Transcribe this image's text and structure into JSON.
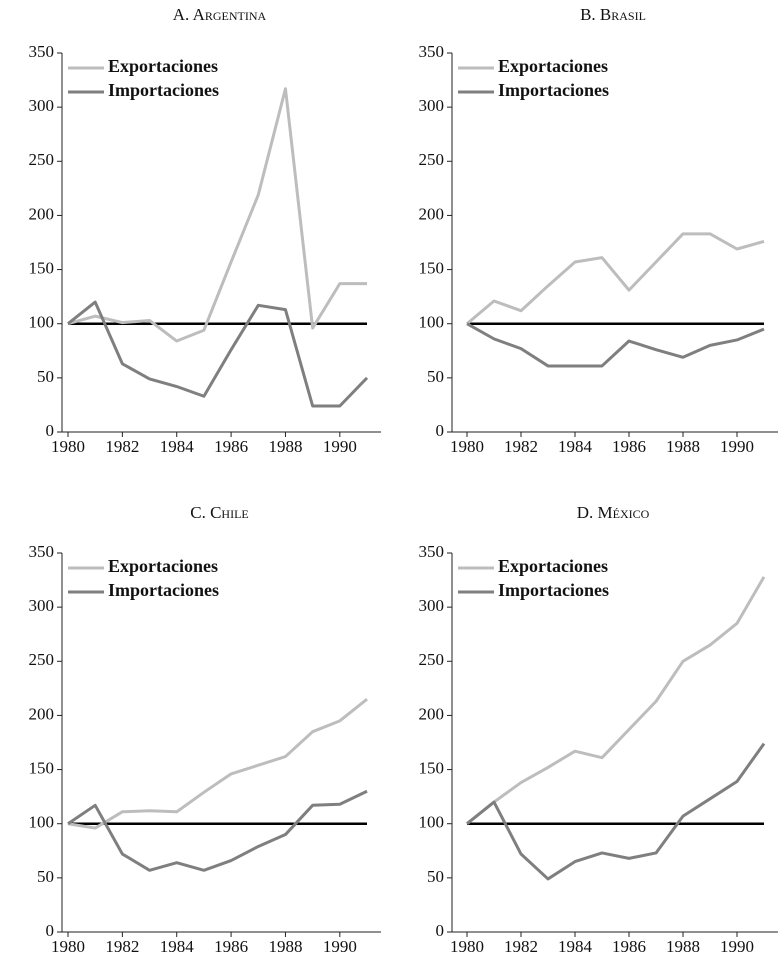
{
  "chart_data": [
    {
      "type": "line",
      "title": "A. Argentina",
      "x": [
        1980,
        1981,
        1982,
        1983,
        1984,
        1985,
        1986,
        1987,
        1988,
        1989,
        1990,
        1991
      ],
      "series": [
        {
          "name": "Exportaciones",
          "color": "#bdbdbd",
          "values": [
            100,
            107,
            101,
            103,
            84,
            94,
            157,
            219,
            317,
            96,
            137,
            137
          ]
        },
        {
          "name": "Importaciones",
          "color": "#7f7f7f",
          "values": [
            100,
            120,
            63,
            49,
            42,
            33,
            76,
            117,
            113,
            24,
            24,
            50
          ]
        }
      ],
      "reference_line": 100,
      "xlim": [
        1980,
        1991
      ],
      "xticks": [
        1980,
        1982,
        1984,
        1986,
        1988,
        1990
      ],
      "ylim": [
        0,
        350
      ],
      "yticks": [
        0,
        50,
        100,
        150,
        200,
        250,
        300,
        350
      ],
      "legend": "upper left"
    },
    {
      "type": "line",
      "title": "B. Brasil",
      "x": [
        1980,
        1981,
        1982,
        1983,
        1984,
        1985,
        1986,
        1987,
        1988,
        1989,
        1990,
        1991
      ],
      "series": [
        {
          "name": "Exportaciones",
          "color": "#bdbdbd",
          "values": [
            100,
            121,
            112,
            135,
            157,
            161,
            131,
            157,
            183,
            183,
            169,
            176
          ]
        },
        {
          "name": "Importaciones",
          "color": "#7f7f7f",
          "values": [
            100,
            86,
            77,
            61,
            61,
            61,
            84,
            76,
            69,
            80,
            85,
            95
          ]
        }
      ],
      "reference_line": 100,
      "xlim": [
        1980,
        1991
      ],
      "xticks": [
        1980,
        1982,
        1984,
        1986,
        1988,
        1990
      ],
      "ylim": [
        0,
        350
      ],
      "yticks": [
        0,
        50,
        100,
        150,
        200,
        250,
        300,
        350
      ],
      "legend": "upper left"
    },
    {
      "type": "line",
      "title": "C. Chile",
      "x": [
        1980,
        1981,
        1982,
        1983,
        1984,
        1985,
        1986,
        1987,
        1988,
        1989,
        1990,
        1991
      ],
      "series": [
        {
          "name": "Exportaciones",
          "color": "#bdbdbd",
          "values": [
            100,
            96,
            111,
            112,
            111,
            129,
            146,
            154,
            162,
            185,
            195,
            215
          ]
        },
        {
          "name": "Importaciones",
          "color": "#7f7f7f",
          "values": [
            100,
            117,
            72,
            57,
            64,
            57,
            66,
            79,
            90,
            117,
            118,
            130
          ]
        }
      ],
      "reference_line": 100,
      "xlim": [
        1980,
        1991
      ],
      "xticks": [
        1980,
        1982,
        1984,
        1986,
        1988,
        1990
      ],
      "ylim": [
        0,
        350
      ],
      "yticks": [
        0,
        50,
        100,
        150,
        200,
        250,
        300,
        350
      ],
      "legend": "upper left"
    },
    {
      "type": "line",
      "title": "D. México",
      "x": [
        1980,
        1981,
        1982,
        1983,
        1984,
        1985,
        1986,
        1987,
        1988,
        1989,
        1990,
        1991
      ],
      "series": [
        {
          "name": "Exportaciones",
          "color": "#bdbdbd",
          "values": [
            100,
            120,
            138,
            152,
            167,
            161,
            187,
            213,
            250,
            265,
            285,
            328
          ]
        },
        {
          "name": "Importaciones",
          "color": "#7f7f7f",
          "values": [
            100,
            120,
            72,
            49,
            65,
            73,
            68,
            73,
            107,
            123,
            139,
            174
          ]
        }
      ],
      "reference_line": 100,
      "xlim": [
        1980,
        1991
      ],
      "xticks": [
        1980,
        1982,
        1984,
        1986,
        1988,
        1990
      ],
      "ylim": [
        0,
        350
      ],
      "yticks": [
        0,
        50,
        100,
        150,
        200,
        250,
        300,
        350
      ],
      "legend": "upper left"
    }
  ]
}
